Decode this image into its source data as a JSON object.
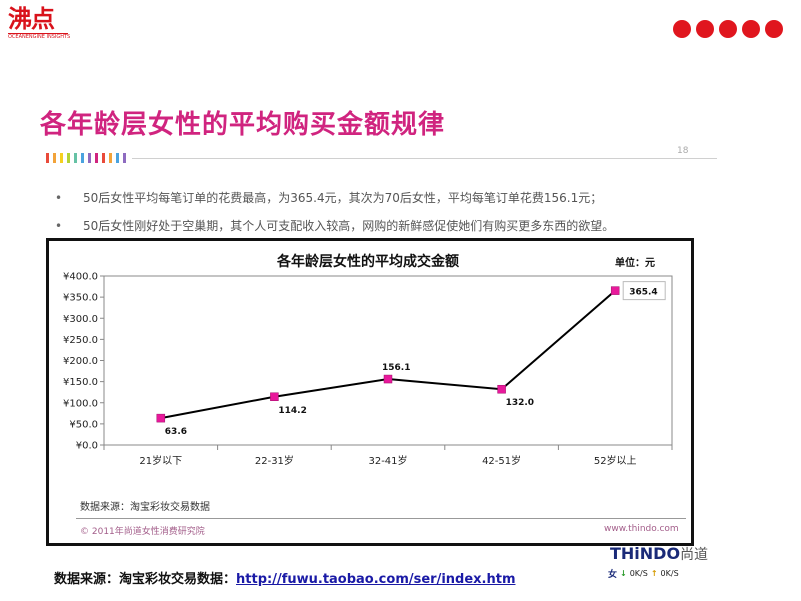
{
  "logo": {
    "main": "沸点",
    "sub": "OCEANENGINE INSIGHTS"
  },
  "slide": {
    "title": "各年龄层女性的平均购买金额规律",
    "page_number": "18",
    "bullets": [
      "50后女性平均每笔订单的花费最高，为365.4元，其次为70后女性，平均每笔订单花费156.1元；",
      "50后女性刚好处于空巢期，其个人可支配收入较高，网购的新鲜感促使她们有购买更多东西的欲望。"
    ],
    "stripe_colors": [
      "#e94a3a",
      "#f2a33a",
      "#f5d020",
      "#b3d335",
      "#66c2a5",
      "#4aa3df",
      "#8e6bc0",
      "#d0247f",
      "#e94a3a",
      "#f2a33a",
      "#4aa3df",
      "#8e6bc0"
    ]
  },
  "chart_data": {
    "type": "line",
    "title": "各年龄层女性的平均成交金额",
    "unit_label": "单位：元",
    "categories": [
      "21岁以下",
      "22-31岁",
      "32-41岁",
      "42-51岁",
      "52岁以上"
    ],
    "values": [
      63.6,
      114.2,
      156.1,
      132.0,
      365.4
    ],
    "value_labels": [
      "63.6",
      "114.2",
      "156.1",
      "132.0",
      "365.4"
    ],
    "ylim": [
      0,
      400
    ],
    "yticks": [
      0,
      50,
      100,
      150,
      200,
      250,
      300,
      350,
      400
    ],
    "ytick_labels": [
      "¥0.0",
      "¥50.0",
      "¥100.0",
      "¥150.0",
      "¥200.0",
      "¥250.0",
      "¥300.0",
      "¥350.0",
      "¥400.0"
    ],
    "grid": false,
    "line_color": "#000000",
    "marker_color": "#e8199b"
  },
  "chart_footer": {
    "source": "数据来源：淘宝彩妆交易数据",
    "copyright": "© 2011年尚道女性消费研究院",
    "website": "www.thindo.com"
  },
  "bottom": {
    "source_label": "数据来源：淘宝彩妆交易数据：",
    "source_url": "http://fuwu.taobao.com/ser/index.htm"
  },
  "brand": {
    "name": "THiNDO",
    "name_cn": "尚道",
    "prefix": "女",
    "down_speed": "0K/S",
    "up_speed": "0K/S"
  }
}
